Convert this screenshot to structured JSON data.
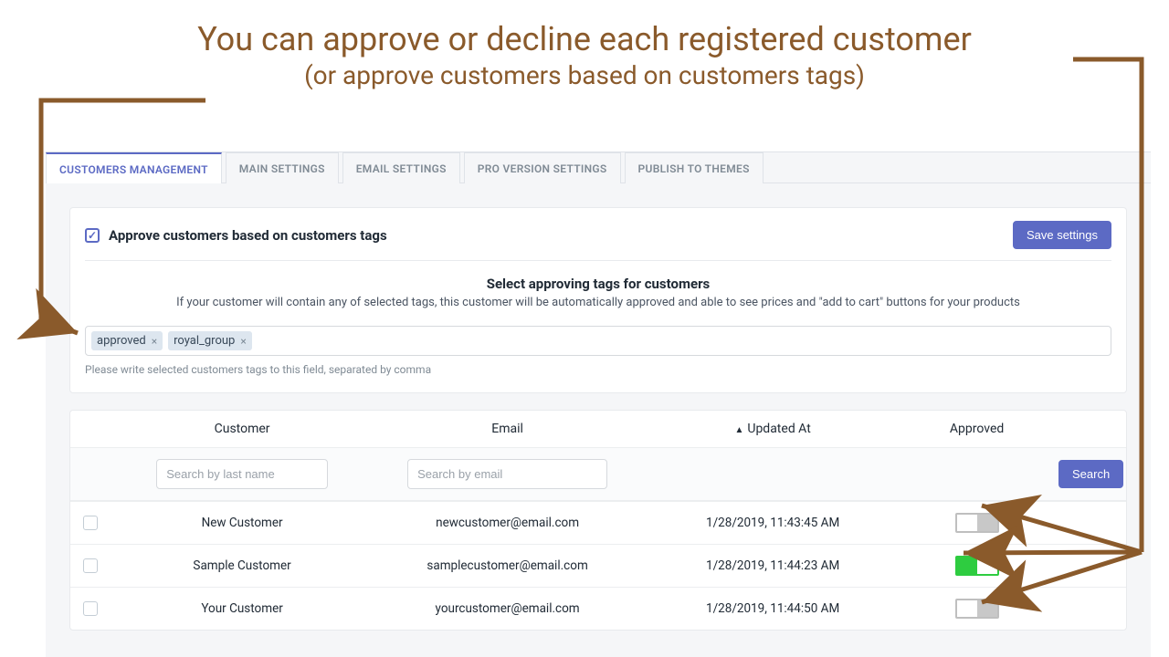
{
  "annotation": {
    "headline": "You can approve or decline each registered customer",
    "subhead": "(or approve customers based on customers tags)",
    "color": "#8a5a2b"
  },
  "tabs": [
    {
      "label": "CUSTOMERS MANAGEMENT",
      "active": true
    },
    {
      "label": "MAIN SETTINGS"
    },
    {
      "label": "EMAIL SETTINGS"
    },
    {
      "label": "PRO VERSION SETTINGS"
    },
    {
      "label": "PUBLISH TO THEMES"
    }
  ],
  "approve": {
    "checkbox_label": "Approve customers based on customers tags",
    "checked": true,
    "save_btn": "Save settings",
    "title": "Select approving tags for customers",
    "desc": "If your customer will contain any of selected tags, this customer will be automatically approved and able to see prices and \"add to cart\" buttons for your products",
    "tags": [
      "approved",
      "royal_group"
    ],
    "hint": "Please write selected customers tags to this field, separated by comma"
  },
  "table": {
    "columns": [
      "Customer",
      "Email",
      "Updated At",
      "Approved"
    ],
    "sort_column": "Updated At",
    "filter": {
      "name_placeholder": "Search by last name",
      "email_placeholder": "Search by email",
      "search_btn": "Search"
    },
    "rows": [
      {
        "name": "New Customer",
        "email": "newcustomer@email.com",
        "updated": "1/28/2019, 11:43:45 AM",
        "approved": false
      },
      {
        "name": "Sample Customer",
        "email": "samplecustomer@email.com",
        "updated": "1/28/2019, 11:44:23 AM",
        "approved": true
      },
      {
        "name": "Your Customer",
        "email": "yourcustomer@email.com",
        "updated": "1/28/2019, 11:44:50 AM",
        "approved": false
      }
    ]
  },
  "colors": {
    "brand": "#5c6ac4",
    "text": "#212b36",
    "muted": "#808b95",
    "line": "#dfe3e8",
    "chip_bg": "#dde6ef",
    "panel_bg": "#f5f6f8",
    "toggle_on": "#2ecc40",
    "toggle_off": "#c8c8c8",
    "annotation": "#8a5a2b"
  }
}
